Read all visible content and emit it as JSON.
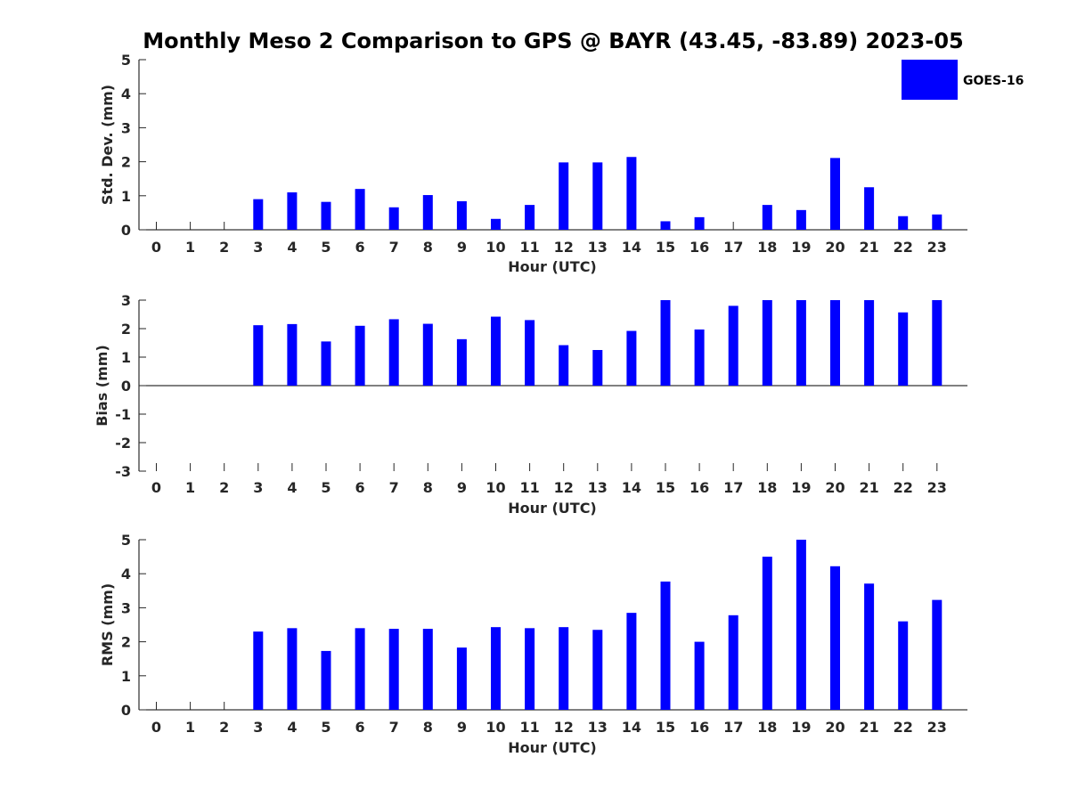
{
  "chart_data": {
    "type": "bar",
    "title": "Monthly Meso 2 Comparison to GPS @ BAYR (43.45, -83.89) 2023-05",
    "legend": {
      "label": "GOES-16",
      "color": "#0000ff",
      "placement": "top-right"
    },
    "categories": [
      "0",
      "1",
      "2",
      "3",
      "4",
      "5",
      "6",
      "7",
      "8",
      "9",
      "10",
      "11",
      "12",
      "13",
      "14",
      "15",
      "16",
      "17",
      "18",
      "19",
      "20",
      "21",
      "22",
      "23"
    ],
    "panels": [
      {
        "name": "std-dev",
        "ylabel": "Std. Dev. (mm)",
        "xlabel": "Hour (UTC)",
        "ylim": [
          0,
          5
        ],
        "yticks": [
          0,
          1,
          2,
          3,
          4,
          5
        ],
        "series": [
          {
            "name": "GOES-16",
            "values": [
              null,
              null,
              null,
              0.9,
              1.1,
              0.82,
              1.2,
              0.66,
              1.02,
              0.84,
              0.32,
              0.73,
              1.98,
              1.98,
              2.14,
              0.25,
              0.37,
              null,
              0.73,
              0.58,
              2.11,
              1.25,
              0.4,
              0.45
            ]
          }
        ]
      },
      {
        "name": "bias",
        "ylabel": "Bias (mm)",
        "xlabel": "Hour (UTC)",
        "ylim": [
          -3,
          3
        ],
        "yticks": [
          -3,
          -2,
          -1,
          0,
          1,
          2,
          3
        ],
        "series": [
          {
            "name": "GOES-16",
            "values": [
              null,
              null,
              null,
              2.12,
              2.16,
              1.55,
              2.1,
              2.33,
              2.17,
              1.63,
              2.42,
              2.3,
              1.42,
              1.25,
              1.92,
              3.0,
              1.97,
              2.8,
              3.0,
              3.0,
              3.0,
              3.0,
              2.57,
              3.0
            ]
          }
        ]
      },
      {
        "name": "rms",
        "ylabel": "RMS (mm)",
        "xlabel": "Hour (UTC)",
        "ylim": [
          0,
          5
        ],
        "yticks": [
          0,
          1,
          2,
          3,
          4,
          5
        ],
        "series": [
          {
            "name": "GOES-16",
            "values": [
              null,
              null,
              null,
              2.3,
              2.4,
              1.73,
              2.4,
              2.38,
              2.38,
              1.83,
              2.43,
              2.4,
              2.43,
              2.35,
              2.85,
              3.77,
              2.0,
              2.78,
              4.5,
              5.0,
              4.22,
              3.71,
              2.6,
              3.23
            ]
          }
        ]
      }
    ]
  }
}
